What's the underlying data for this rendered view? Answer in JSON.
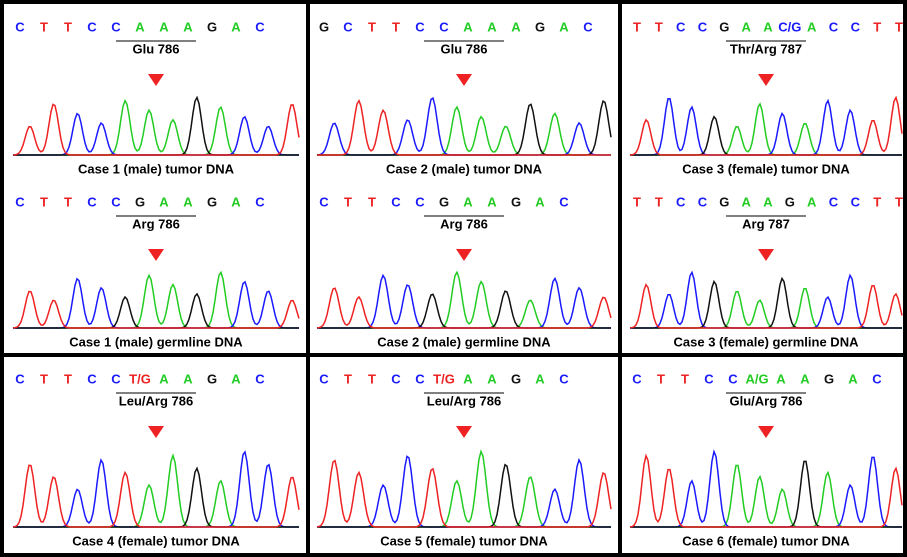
{
  "panels": [
    {
      "bases": [
        "C",
        "T",
        "T",
        "C",
        "C",
        "A",
        "A",
        "A",
        "G",
        "A",
        "C"
      ],
      "codon": "Glu 786",
      "caption": "Case 1 (male) tumor DNA"
    },
    {
      "bases": [
        "G",
        "C",
        "T",
        "T",
        "C",
        "C",
        "A",
        "A",
        "A",
        "G",
        "A",
        "C"
      ],
      "codon": "Glu 786",
      "caption": "Case 2 (male) tumor DNA"
    },
    {
      "bases": [
        "T",
        "T",
        "C",
        "C",
        "G",
        "A",
        "A",
        "C/G",
        "A",
        "C",
        "C",
        "T",
        "T"
      ],
      "codon": "Thr/Arg 787",
      "caption": "Case 3 (female) tumor DNA"
    },
    {
      "bases": [
        "C",
        "T",
        "T",
        "C",
        "C",
        "G",
        "A",
        "A",
        "G",
        "A",
        "C"
      ],
      "codon": "Arg 786",
      "caption": "Case 1 (male) germline DNA"
    },
    {
      "bases": [
        "C",
        "T",
        "T",
        "C",
        "C",
        "G",
        "A",
        "A",
        "G",
        "A",
        "C"
      ],
      "codon": "Arg 786",
      "caption": "Case 2 (male) germline DNA"
    },
    {
      "bases": [
        "T",
        "T",
        "C",
        "C",
        "G",
        "A",
        "A",
        "G",
        "A",
        "C",
        "C",
        "T",
        "T"
      ],
      "codon": "Arg 787",
      "caption": "Case 3 (female) germline DNA"
    },
    {
      "bases": [
        "C",
        "T",
        "T",
        "C",
        "C",
        "T/G",
        "A",
        "A",
        "G",
        "A",
        "C"
      ],
      "codon": "Leu/Arg 786",
      "caption": "Case 4 (female) tumor DNA"
    },
    {
      "bases": [
        "C",
        "T",
        "T",
        "C",
        "C",
        "T/G",
        "A",
        "A",
        "G",
        "A",
        "C"
      ],
      "codon": "Leu/Arg 786",
      "caption": "Case 5 (female) tumor DNA"
    },
    {
      "bases": [
        "C",
        "T",
        "T",
        "C",
        "C",
        "A/G",
        "A",
        "A",
        "G",
        "A",
        "C"
      ],
      "codon": "Glu/Arg 786",
      "caption": "Case 6 (female) tumor DNA"
    }
  ]
}
